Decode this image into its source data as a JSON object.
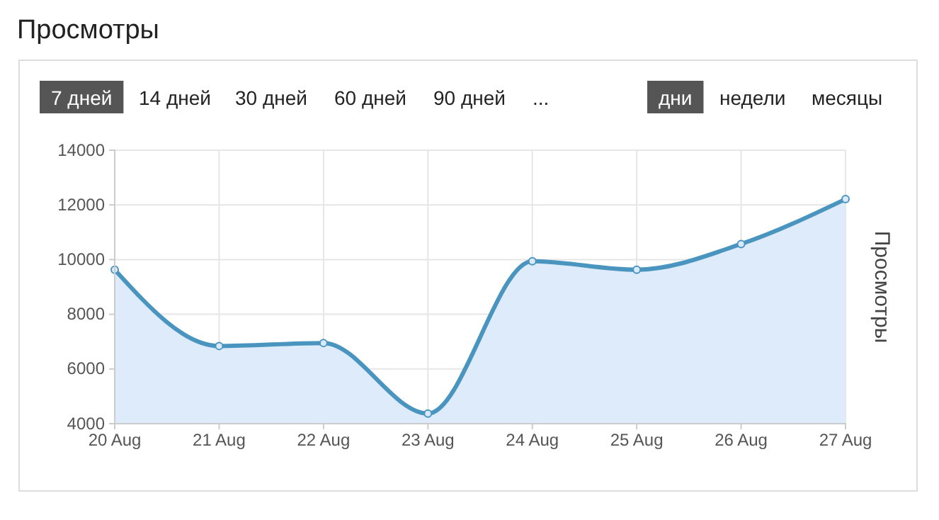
{
  "chart_data": {
    "type": "area",
    "title": "Просмотры",
    "ylabel": "Просмотры",
    "annotations": [
      "7 дней",
      "14 дней",
      "30 дней",
      "60 дней",
      "90 дней",
      "...",
      "дни",
      "недели",
      "месяцы"
    ],
    "categories": [
      "20 Aug",
      "21 Aug",
      "22 Aug",
      "23 Aug",
      "24 Aug",
      "25 Aug",
      "26 Aug",
      "27 Aug"
    ],
    "series": [
      {
        "color": "#4a95c0",
        "values": [
          9630,
          6840,
          6950,
          4370,
          9940,
          9630,
          10570,
          12210
        ]
      }
    ],
    "ylim": [
      4000,
      14000
    ],
    "yticks": [
      4000,
      6000,
      8000,
      10000,
      12000,
      14000
    ],
    "grid": true,
    "marker": "circle"
  }
}
